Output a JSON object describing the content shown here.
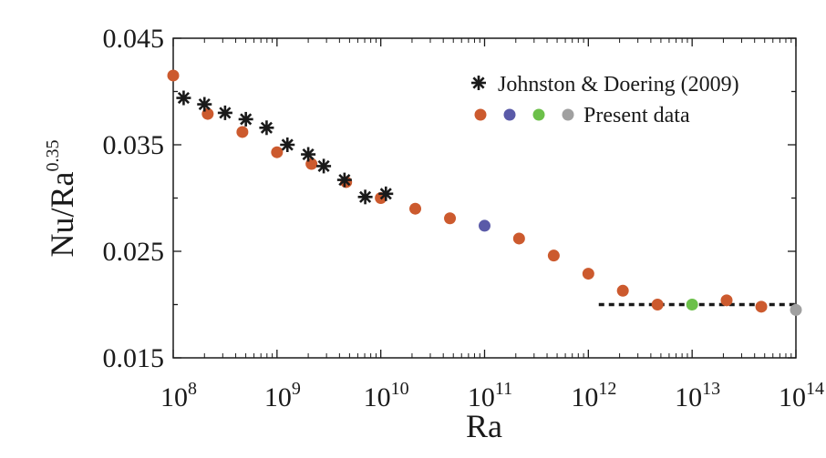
{
  "chart_data": {
    "type": "scatter",
    "xlabel": "Ra",
    "ylabel_base": "Nu/Ra",
    "ylabel_exp": "0.35",
    "x_scale": "log",
    "xlim": [
      100000000,
      100000000000000
    ],
    "ylim": [
      0.015,
      0.045
    ],
    "x_ticks": [
      {
        "base": "10",
        "exp": "8"
      },
      {
        "base": "10",
        "exp": "9"
      },
      {
        "base": "10",
        "exp": "10"
      },
      {
        "base": "10",
        "exp": "11"
      },
      {
        "base": "10",
        "exp": "12"
      },
      {
        "base": "10",
        "exp": "13"
      },
      {
        "base": "10",
        "exp": "14"
      }
    ],
    "y_ticks": [
      "0.015",
      "0.025",
      "0.035",
      "0.045"
    ],
    "grid": false,
    "legend_position": "top-right",
    "legend": {
      "johnston_label": "Johnston & Doering (2009)",
      "present_label": "Present data"
    },
    "series": [
      {
        "name": "Johnston & Doering (2009)",
        "marker": "asterisk",
        "color": "#1a1a1a",
        "points": [
          [
            126000000,
            0.0394
          ],
          [
            200000000,
            0.0388
          ],
          [
            316000000,
            0.038
          ],
          [
            501000000,
            0.0374
          ],
          [
            794000000,
            0.0366
          ],
          [
            1260000000,
            0.035
          ],
          [
            2000000000,
            0.0341
          ],
          [
            2820000000,
            0.033
          ],
          [
            4470000000,
            0.0317
          ],
          [
            7080000000,
            0.0301
          ],
          [
            11200000000,
            0.0304
          ]
        ]
      },
      {
        "name": "Present data",
        "marker": "circle",
        "points": [
          [
            100000000,
            0.0415,
            "#cc5a2e"
          ],
          [
            215000000,
            0.0379,
            "#cc5a2e"
          ],
          [
            464000000,
            0.0362,
            "#cc5a2e"
          ],
          [
            1000000000,
            0.0343,
            "#cc5a2e"
          ],
          [
            2150000000,
            0.0332,
            "#cc5a2e"
          ],
          [
            4640000000,
            0.0315,
            "#cc5a2e"
          ],
          [
            10000000000,
            0.03,
            "#cc5a2e"
          ],
          [
            21500000000,
            0.029,
            "#cc5a2e"
          ],
          [
            46400000000,
            0.0281,
            "#cc5a2e"
          ],
          [
            100000000000,
            0.0274,
            "#5a5aa8"
          ],
          [
            215000000000,
            0.0262,
            "#cc5a2e"
          ],
          [
            464000000000,
            0.0246,
            "#cc5a2e"
          ],
          [
            1000000000000,
            0.0229,
            "#cc5a2e"
          ],
          [
            2150000000000,
            0.0213,
            "#cc5a2e"
          ],
          [
            4640000000000,
            0.02,
            "#cc5a2e"
          ],
          [
            10000000000000,
            0.02,
            "#6cc04a"
          ],
          [
            21500000000000,
            0.0204,
            "#cc5a2e"
          ],
          [
            46400000000000,
            0.0198,
            "#cc5a2e"
          ],
          [
            100000000000000,
            0.0195,
            "#a0a0a0"
          ]
        ],
        "legend_colors": [
          "#cc5a2e",
          "#5a5aa8",
          "#6cc04a",
          "#a0a0a0"
        ]
      }
    ],
    "reference_line": {
      "style": "dotted",
      "color": "#1a1a1a",
      "x_range": [
        1260000000000,
        100000000000000
      ],
      "y": 0.02
    }
  }
}
